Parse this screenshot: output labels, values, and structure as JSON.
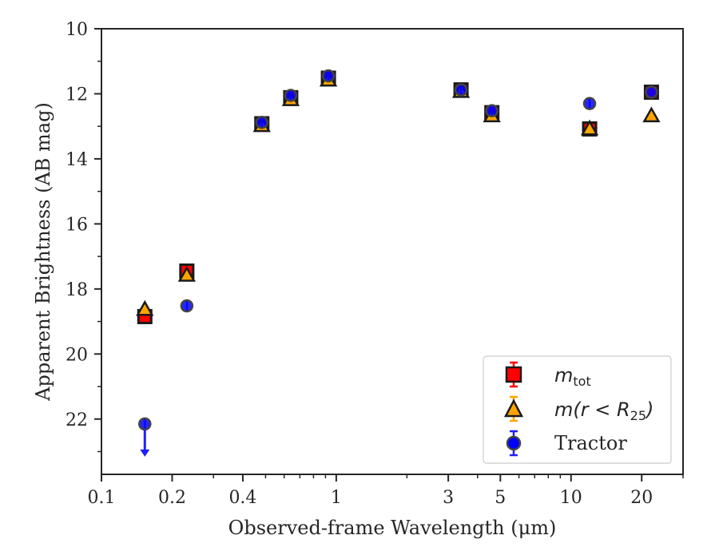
{
  "chart_data": {
    "type": "scatter",
    "title": "",
    "xlabel": "Observed-frame Wavelength (μm)",
    "ylabel": "Apparent Brightness (AB mag)",
    "xscale": "log",
    "yscale": "linear",
    "y_inverted": true,
    "xlim": [
      0.1,
      30
    ],
    "ylim": [
      10,
      23.7
    ],
    "xticks": [
      0.1,
      0.2,
      0.4,
      1,
      3,
      5,
      10,
      20
    ],
    "xtick_labels": [
      "0.1",
      "0.2",
      "0.4",
      "1",
      "3",
      "5",
      "10",
      "20"
    ],
    "yticks": [
      10,
      12,
      14,
      16,
      18,
      20,
      22
    ],
    "ytick_labels": [
      "10",
      "12",
      "14",
      "16",
      "18",
      "20",
      "22"
    ],
    "grid": false,
    "legend_position": "lower-right",
    "series": [
      {
        "name": "m_tot",
        "marker": "square",
        "color": "#ff0000",
        "edgecolor": "#1a1a1a",
        "errorcolor": "#ff0000",
        "x": [
          0.153,
          0.231,
          0.482,
          0.64,
          0.926,
          3.4,
          4.6,
          12.0,
          22.0
        ],
        "y": [
          18.85,
          17.45,
          12.92,
          12.12,
          11.52,
          11.88,
          12.58,
          13.08,
          11.95
        ]
      },
      {
        "name": "m(r < R25)",
        "marker": "triangle",
        "color": "#ffa500",
        "edgecolor": "#1a1a1a",
        "errorcolor": "#ffa500",
        "x": [
          0.153,
          0.231,
          0.482,
          0.64,
          0.926,
          3.4,
          4.6,
          12.0,
          22.0
        ],
        "y": [
          18.6,
          17.55,
          12.95,
          12.15,
          11.55,
          11.9,
          12.65,
          13.05,
          12.65
        ]
      },
      {
        "name": "Tractor",
        "marker": "circle",
        "color": "#0000ff",
        "edgecolor": "#444444",
        "errorcolor": "#1f1fff",
        "x": [
          0.153,
          0.231,
          0.482,
          0.64,
          0.926,
          3.4,
          4.6,
          12.0,
          22.0
        ],
        "y": [
          22.15,
          18.52,
          12.88,
          12.05,
          11.45,
          11.88,
          12.52,
          12.3,
          11.95
        ],
        "upper_limit": [
          true,
          false,
          false,
          false,
          false,
          false,
          false,
          false,
          false
        ]
      }
    ]
  },
  "legend": {
    "mtot_main": "m",
    "mtot_sub": "tot",
    "mr_pre": "m(r < R",
    "mr_sub": "25",
    "mr_post": ")",
    "tractor": "Tractor"
  }
}
